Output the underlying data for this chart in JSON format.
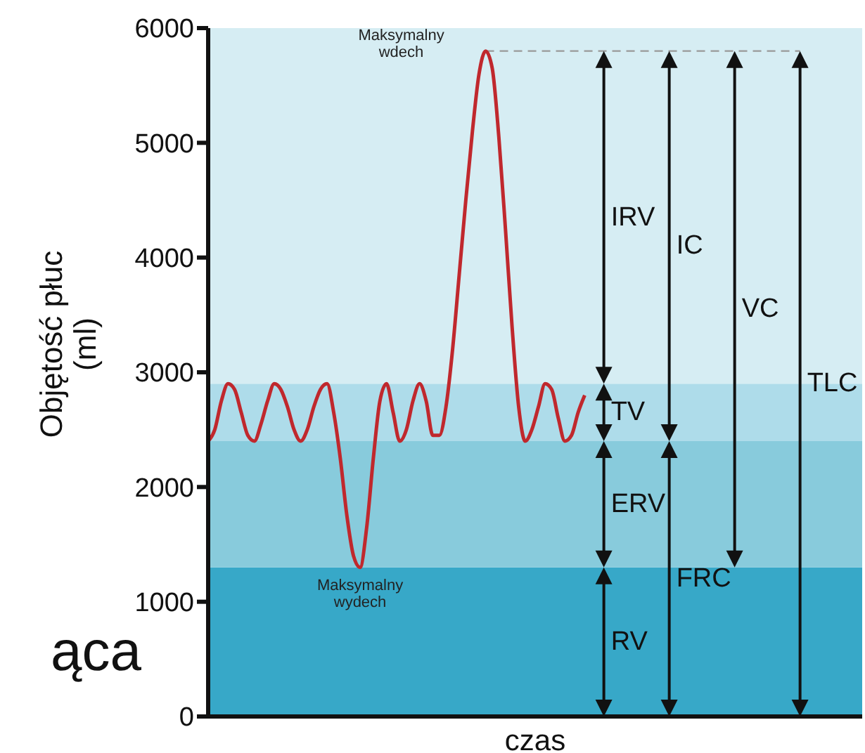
{
  "chart_data": {
    "type": "line",
    "xlabel": "czas",
    "ylabel": "Objętość płuc (ml)",
    "categories": [
      null,
      null,
      null,
      null,
      null,
      null,
      null,
      null,
      null,
      null,
      null,
      null,
      null,
      null,
      null,
      null,
      null,
      null,
      null,
      null,
      null,
      null,
      null,
      null,
      null,
      null,
      null,
      null,
      null,
      null,
      null,
      null,
      null,
      null,
      null,
      null,
      null,
      null,
      null,
      null,
      null,
      null,
      null,
      null,
      null,
      null,
      null,
      null,
      null,
      null,
      null,
      null,
      null,
      null,
      null,
      null,
      null,
      null,
      null,
      null,
      null,
      null,
      null,
      null,
      null,
      null,
      null,
      null,
      null,
      null,
      null,
      null,
      null,
      null,
      null,
      null,
      null,
      null,
      null,
      null,
      null,
      null,
      null,
      null,
      null,
      null,
      null,
      null,
      null,
      null,
      null,
      null,
      null,
      null,
      null,
      null,
      null,
      null,
      null,
      null
    ],
    "series": [
      {
        "color": "#c0282d",
        "values": [
          2400,
          2500,
          2750,
          2900,
          2850,
          2650,
          2450,
          2400,
          2550,
          2750,
          2900,
          2850,
          2700,
          2500,
          2400,
          2500,
          2700,
          2850,
          2900,
          2650,
          2250,
          1750,
          1400,
          1300,
          1650,
          2250,
          2750,
          2900,
          2650,
          2400,
          2500,
          2750,
          2900,
          2750,
          2450,
          2450,
          2700,
          3200,
          3850,
          4500,
          5100,
          5600,
          5800,
          5650,
          5050,
          4250,
          3400,
          2700,
          2400,
          2500,
          2700,
          2900,
          2850,
          2600,
          2400,
          2450,
          2650,
          2800,
          null,
          null,
          null,
          null,
          null,
          null,
          null,
          null,
          null,
          null,
          null,
          null,
          null,
          null,
          null,
          null,
          null,
          null,
          null,
          null,
          null,
          null,
          null,
          null,
          null,
          null,
          null,
          null,
          null,
          null,
          null,
          null,
          null,
          null,
          null,
          null,
          null,
          null,
          null,
          null,
          null,
          null
        ]
      }
    ],
    "ylim": [
      0,
      6000
    ],
    "yticks": [
      0,
      1000,
      2000,
      3000,
      4000,
      5000,
      6000
    ],
    "tick_labels": "y",
    "marker": "none",
    "line_style": "solid",
    "bands": [
      {
        "axis": "y",
        "from": 0,
        "to": 1300,
        "color": "#37a8c8"
      },
      {
        "axis": "y",
        "from": 1300,
        "to": 2400,
        "color": "#88cbdc"
      },
      {
        "axis": "y",
        "from": 2400,
        "to": 2900,
        "color": "#aedcea"
      },
      {
        "axis": "y",
        "from": 2900,
        "to": 6000,
        "color": "#d6edf3"
      }
    ],
    "ref_lines": [
      {
        "axis": "y",
        "value": 5800,
        "color": "#999999",
        "line_style": "dashed"
      }
    ],
    "annotations": [
      "Maksymalny wdech",
      "Maksymalny wydech",
      "IRV",
      "TV",
      "ERV",
      "RV",
      "IC",
      "FRC",
      "VC",
      "TLC",
      "ąca"
    ]
  }
}
